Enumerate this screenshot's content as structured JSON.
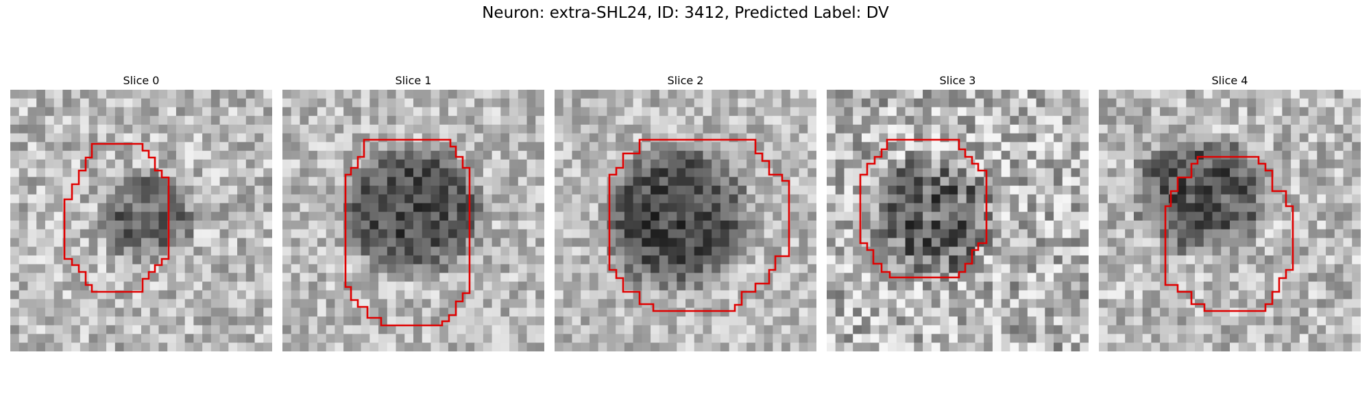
{
  "figure": {
    "title": "Neuron: extra-SHL24, ID: 3412, Predicted Label: DV",
    "outline_color": "#e00000"
  },
  "panels": [
    {
      "title": "Slice 0"
    },
    {
      "title": "Slice 1"
    },
    {
      "title": "Slice 2"
    },
    {
      "title": "Slice 3"
    },
    {
      "title": "Slice 4"
    }
  ]
}
